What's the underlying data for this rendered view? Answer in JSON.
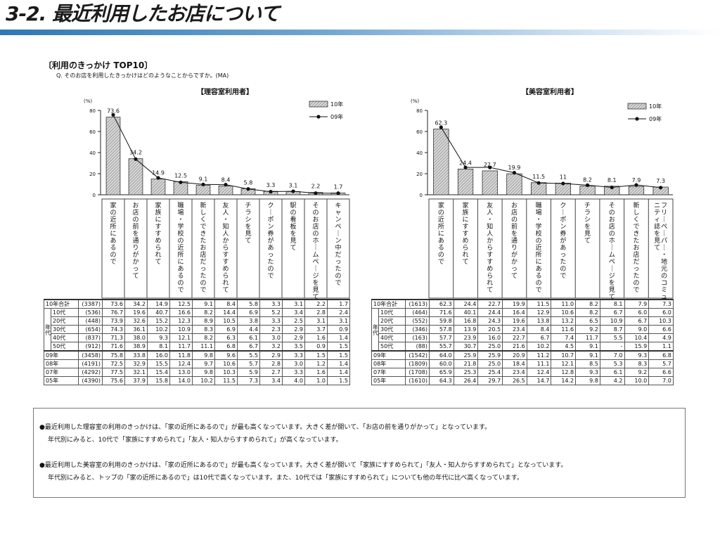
{
  "slide": {
    "title": "3-2. 最近利用したお店について"
  },
  "section": {
    "heading": "〔利用のきっかけ TOP10〕",
    "question": "Q. そのお店を利用したきっかけはどのようなことからですか。(MA)"
  },
  "chart_data": [
    {
      "type": "bar",
      "title": "【理容室利用者】",
      "ylabel": "(%)",
      "ylim": [
        0,
        80
      ],
      "yticks": [
        0,
        20,
        40,
        60,
        80
      ],
      "categories": [
        "家の近所にあるので",
        "お店の前を通りがかって",
        "家族にすすめられて",
        "職場・学校の近所にあるので",
        "新しくできたお店だったので",
        "友人・知人からすすめられて",
        "チラシを見て",
        "クーポン券があったので",
        "駅の看板を見て",
        "そのお店のホームページを見て",
        "キャンペーン中だったので"
      ],
      "series": [
        {
          "name": "10年",
          "values": [
            73.6,
            34.2,
            14.9,
            12.5,
            9.1,
            8.4,
            5.8,
            3.3,
            3.1,
            2.2,
            1.7
          ]
        },
        {
          "name": "09年",
          "values": [
            75.8,
            33.8,
            16.0,
            11.8,
            9.8,
            9.6,
            5.5,
            2.9,
            3.3,
            1.5,
            1.5
          ]
        }
      ],
      "table": {
        "rows": [
          {
            "label": "10年合計",
            "n": "(3387)",
            "values": [
              "73.6",
              "34.2",
              "14.9",
              "12.5",
              "9.1",
              "8.4",
              "5.8",
              "3.3",
              "3.1",
              "2.2",
              "1.7"
            ]
          },
          {
            "label": "10代",
            "n": "(536)",
            "values": [
              "76.7",
              "19.6",
              "40.7",
              "16.6",
              "8.2",
              "14.4",
              "6.9",
              "5.2",
              "3.4",
              "2.8",
              "2.4"
            ]
          },
          {
            "label": "20代",
            "n": "(448)",
            "values": [
              "73.9",
              "32.6",
              "15.2",
              "12.3",
              "8.9",
              "10.5",
              "3.8",
              "3.3",
              "2.5",
              "3.1",
              "3.1"
            ]
          },
          {
            "label": "30代",
            "n": "(654)",
            "values": [
              "74.3",
              "36.1",
              "10.2",
              "10.9",
              "8.3",
              "6.9",
              "4.4",
              "2.3",
              "2.9",
              "3.7",
              "0.9"
            ]
          },
          {
            "label": "40代",
            "n": "(837)",
            "values": [
              "71.3",
              "38.0",
              "9.3",
              "12.1",
              "8.2",
              "6.3",
              "6.1",
              "3.0",
              "2.9",
              "1.6",
              "1.4"
            ]
          },
          {
            "label": "50代",
            "n": "(912)",
            "values": [
              "71.6",
              "38.9",
              "8.1",
              "11.7",
              "11.1",
              "6.8",
              "6.7",
              "3.2",
              "3.5",
              "0.9",
              "1.5"
            ]
          },
          {
            "label": "09年",
            "n": "(3458)",
            "values": [
              "75.8",
              "33.8",
              "16.0",
              "11.8",
              "9.8",
              "9.6",
              "5.5",
              "2.9",
              "3.3",
              "1.5",
              "1.5"
            ]
          },
          {
            "label": "08年",
            "n": "(4191)",
            "values": [
              "72.5",
              "32.9",
              "15.5",
              "12.4",
              "9.7",
              "10.6",
              "5.7",
              "2.8",
              "3.0",
              "1.2",
              "1.4"
            ]
          },
          {
            "label": "07年",
            "n": "(4292)",
            "values": [
              "77.5",
              "32.1",
              "15.4",
              "13.0",
              "9.8",
              "10.3",
              "5.9",
              "2.7",
              "3.3",
              "1.6",
              "1.4"
            ]
          },
          {
            "label": "05年",
            "n": "(4390)",
            "values": [
              "75.6",
              "37.9",
              "15.8",
              "14.0",
              "10.2",
              "11.5",
              "7.3",
              "3.4",
              "4.0",
              "1.0",
              "1.5"
            ]
          }
        ]
      }
    },
    {
      "type": "bar",
      "title": "【美容室利用者】",
      "ylabel": "(%)",
      "ylim": [
        0,
        80
      ],
      "yticks": [
        0,
        20,
        40,
        60,
        80
      ],
      "categories": [
        "家の近所にあるので",
        "家族にすすめられて",
        "友人・知人からすすめられて",
        "お店の前を通りがかって",
        "職場・学校の近所にあるので",
        "クーポン券があったので",
        "チラシを見て",
        "そのお店のホームページを見て",
        "新しくできたお店だったので",
        "フリーペーパー・地元のコミュニティ誌を見て"
      ],
      "series": [
        {
          "name": "10年",
          "values": [
            62.3,
            24.4,
            22.7,
            19.9,
            11.5,
            11.0,
            8.2,
            8.1,
            7.9,
            7.3
          ]
        },
        {
          "name": "09年",
          "values": [
            64.0,
            25.9,
            25.9,
            20.9,
            11.2,
            10.7,
            9.1,
            7.0,
            9.3,
            6.8
          ]
        }
      ],
      "table": {
        "rows": [
          {
            "label": "10年合計",
            "n": "(1613)",
            "values": [
              "62.3",
              "24.4",
              "22.7",
              "19.9",
              "11.5",
              "11.0",
              "8.2",
              "8.1",
              "7.9",
              "7.3"
            ]
          },
          {
            "label": "10代",
            "n": "(464)",
            "values": [
              "71.6",
              "40.1",
              "24.4",
              "16.4",
              "12.9",
              "10.6",
              "8.2",
              "6.7",
              "6.0",
              "6.0"
            ]
          },
          {
            "label": "20代",
            "n": "(552)",
            "values": [
              "59.8",
              "16.8",
              "24.3",
              "19.6",
              "13.8",
              "13.2",
              "6.5",
              "10.9",
              "6.7",
              "10.3"
            ]
          },
          {
            "label": "30代",
            "n": "(346)",
            "values": [
              "57.8",
              "13.9",
              "20.5",
              "23.4",
              "8.4",
              "11.6",
              "9.2",
              "8.7",
              "9.0",
              "6.6"
            ]
          },
          {
            "label": "40代",
            "n": "(163)",
            "values": [
              "57.7",
              "23.9",
              "16.0",
              "22.7",
              "6.7",
              "7.4",
              "11.7",
              "5.5",
              "10.4",
              "4.9"
            ]
          },
          {
            "label": "50代",
            "n": "(88)",
            "values": [
              "55.7",
              "30.7",
              "25.0",
              "21.6",
              "10.2",
              "4.5",
              "9.1",
              "-",
              "15.9",
              "1.1"
            ]
          },
          {
            "label": "09年",
            "n": "(1542)",
            "values": [
              "64.0",
              "25.9",
              "25.9",
              "20.9",
              "11.2",
              "10.7",
              "9.1",
              "7.0",
              "9.3",
              "6.8"
            ]
          },
          {
            "label": "08年",
            "n": "(1809)",
            "values": [
              "60.0",
              "21.8",
              "25.0",
              "18.4",
              "11.1",
              "12.1",
              "8.5",
              "5.3",
              "8.3",
              "5.7"
            ]
          },
          {
            "label": "07年",
            "n": "(1708)",
            "values": [
              "65.9",
              "25.3",
              "25.4",
              "23.4",
              "12.4",
              "12.8",
              "9.3",
              "6.1",
              "9.2",
              "6.6"
            ]
          },
          {
            "label": "05年",
            "n": "(1610)",
            "values": [
              "64.3",
              "26.4",
              "29.7",
              "26.5",
              "14.7",
              "14.2",
              "9.8",
              "4.2",
              "10.0",
              "7.0"
            ]
          }
        ]
      }
    }
  ],
  "age_group_label": "年代",
  "summary": {
    "p1_line1": "●最近利用した理容室の利用のきっかけは、「家の近所にあるので」が最も高くなっています。大きく差が開いて、「お店の前を通りがかって」となっています。",
    "p1_line2": "年代別にみると、10代で「家族にすすめられて」「友人・知人からすすめられて」が高くなっています。",
    "p2_line1": "●最近利用した美容室の利用のきっかけは、「家の近所にあるので」が最も高くなっています。大きく差が開いて「家族にすすめられて」「友人・知人からすすめられて」となっています。",
    "p2_line2": "年代別にみると、トップの「家の近所にあるので」は10代で高くなっています。また、10代では「家族にすすめられて」についても他の年代に比べ高くなっています。"
  },
  "colors": {
    "bar_fill": "#d8d8d8",
    "hatch": "#6b6b6b",
    "line": "#111111",
    "accent": "#2e78b4"
  }
}
